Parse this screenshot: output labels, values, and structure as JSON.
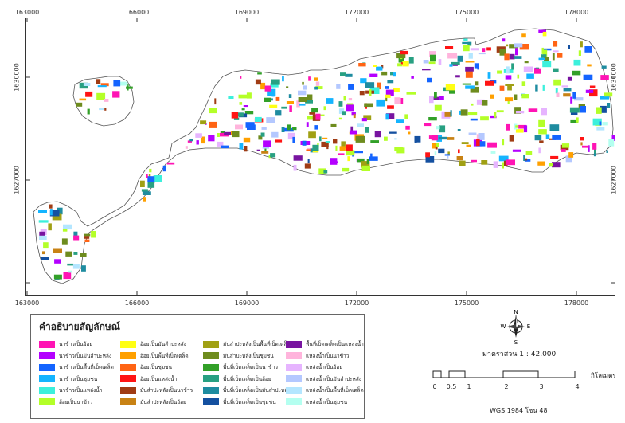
{
  "coords": {
    "x_top": [
      "163000",
      "166000",
      "169000",
      "172000",
      "175000",
      "178000"
    ],
    "x_bottom": [
      "163000",
      "166000",
      "169000",
      "172000",
      "175000",
      "178000"
    ],
    "y_left": [
      "1630000",
      "1627000"
    ],
    "y_right": [
      "1630000",
      "1627000"
    ]
  },
  "legend": {
    "title": "คำอธิบายสัญลักษณ์",
    "columns": [
      [
        {
          "label": "นาข้าวเป็นอ้อย",
          "color": "#ff14b4"
        },
        {
          "label": "นาข้าวเป็นมันสำปะหลัง",
          "color": "#b400ff"
        },
        {
          "label": "นาข้าวเป็นพื้นที่เบ็ดเตล็ด",
          "color": "#1464ff"
        },
        {
          "label": "นาข้าวเป็นชุมชน",
          "color": "#14b4ff"
        },
        {
          "label": "นาข้าวเป็นแหล่งน้ำ",
          "color": "#3cf0dc"
        },
        {
          "label": "อ้อยเป็นนาข้าว",
          "color": "#b4ff28"
        }
      ],
      [
        {
          "label": "อ้อยเป็นมันสำปะหลัง",
          "color": "#ffff14"
        },
        {
          "label": "อ้อยเป็นพื้นที่เบ็ดเตล็ด",
          "color": "#ffa000"
        },
        {
          "label": "อ้อยเป็นชุมชน",
          "color": "#ff6414"
        },
        {
          "label": "อ้อยเป็นแหล่งน้ำ",
          "color": "#ff1414"
        },
        {
          "label": "มันสำปะหลังเป็นนาข้าว",
          "color": "#a03c14"
        },
        {
          "label": "มันสำปะหลังเป็นอ้อย",
          "color": "#c88214"
        }
      ],
      [
        {
          "label": "มันสำปะหลังเป็นพื้นที่เบ็ดเตล็ด",
          "color": "#a0a014"
        },
        {
          "label": "มันสำปะหลังเป็นชุมชน",
          "color": "#6e8c1e"
        },
        {
          "label": "พื้นที่เบ็ดเตล็ดเป็นนาข้าว",
          "color": "#32a028"
        },
        {
          "label": "พื้นที่เบ็ดเตล็ดเป็นอ้อย",
          "color": "#28a082"
        },
        {
          "label": "พื้นที่เบ็ดเตล็ดเป็นมันสำปะหลัง",
          "color": "#1e8ca0"
        },
        {
          "label": "พื้นที่เบ็ดเตล็ดเป็นชุมชน",
          "color": "#1450a0"
        }
      ],
      [
        {
          "label": "พื้นที่เบ็ดเตล็ดเป็นแหล่งน้ำ",
          "color": "#7814a0"
        },
        {
          "label": "แหล่งน้ำเป็นนาข้าว",
          "color": "#ffb4dc"
        },
        {
          "label": "แหล่งน้ำเป็นอ้อย",
          "color": "#e6b4ff"
        },
        {
          "label": "แหล่งน้ำเป็นมันสำปะหลัง",
          "color": "#b4c8ff"
        },
        {
          "label": "แหล่งน้ำเป็นพื้นที่เบ็ดเตล็ด",
          "color": "#b4e6ff"
        },
        {
          "label": "แหล่งน้ำเป็นชุมชน",
          "color": "#b4fff0"
        }
      ]
    ]
  },
  "north": {
    "n": "N",
    "s": "S",
    "e": "E",
    "w": "W"
  },
  "scale": {
    "title": "มาตราส่วน 1 : 42,000",
    "unit": "กิโลเมตร",
    "ticks": [
      "0",
      "0.5",
      "1",
      "2",
      "3",
      "4"
    ]
  },
  "projection": "WGS 1984 โซน 48"
}
